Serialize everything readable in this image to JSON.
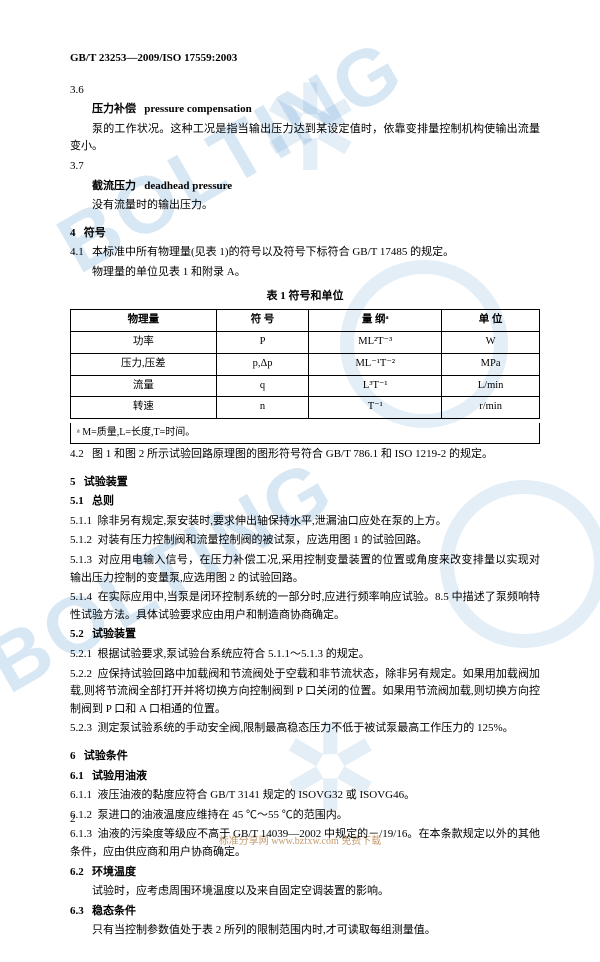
{
  "doc_header": "GB/T 23253—2009/ISO 17559:2003",
  "s3_6": {
    "num": "3.6",
    "term_cn": "压力补偿",
    "term_en": "pressure compensation",
    "text": "泵的工作状况。这种工况是指当输出压力达到某设定值时，依靠变排量控制机构使输出流量变小。"
  },
  "s3_7": {
    "num": "3.7",
    "term_cn": "截流压力",
    "term_en": "deadhead pressure",
    "text": "没有流量时的输出压力。"
  },
  "s4": {
    "num": "4",
    "title": "符号"
  },
  "s4_1": {
    "num": "4.1",
    "text": "本标准中所有物理量(见表 1)的符号以及符号下标符合 GB/T 17485 的规定。",
    "text2": "物理量的单位见表 1 和附录 A。"
  },
  "table1": {
    "title": "表 1  符号和单位",
    "headers": [
      "物理量",
      "符  号",
      "量  纲ᵃ",
      "单  位"
    ],
    "rows": [
      [
        "功率",
        "P",
        "ML²T⁻³",
        "W"
      ],
      [
        "压力,压差",
        "p,Δp",
        "ML⁻¹T⁻²",
        "MPa"
      ],
      [
        "流量",
        "q",
        "L³T⁻¹",
        "L/min"
      ],
      [
        "转速",
        "n",
        "T⁻¹",
        "r/min"
      ]
    ],
    "note": "ᵃ M=质量,L=长度,T=时间。"
  },
  "s4_2": {
    "num": "4.2",
    "text": "图 1 和图 2 所示试验回路原理图的图形符号符合 GB/T 786.1 和 ISO 1219-2 的规定。"
  },
  "s5": {
    "num": "5",
    "title": "试验装置"
  },
  "s5_1": {
    "num": "5.1",
    "title": "总则"
  },
  "s5_1_1": {
    "num": "5.1.1",
    "text": "除非另有规定,泵安装时,要求伸出轴保持水平,泄漏油口应处在泵的上方。"
  },
  "s5_1_2": {
    "num": "5.1.2",
    "text": "对装有压力控制阀和流量控制阀的被试泵，应选用图 1 的试验回路。"
  },
  "s5_1_3": {
    "num": "5.1.3",
    "text": "对应用电输入信号，在压力补偿工况,采用控制变量装置的位置或角度来改变排量以实现对输出压力控制的变量泵,应选用图 2 的试验回路。"
  },
  "s5_1_4": {
    "num": "5.1.4",
    "text": "在实际应用中,当泵是闭环控制系统的一部分时,应进行频率响应试验。8.5 中描述了泵频响特性试验方法。具体试验要求应由用户和制造商协商确定。"
  },
  "s5_2": {
    "num": "5.2",
    "title": "试验装置"
  },
  "s5_2_1": {
    "num": "5.2.1",
    "text": "根据试验要求,泵试验台系统应符合 5.1.1～5.1.3 的规定。"
  },
  "s5_2_2": {
    "num": "5.2.2",
    "text": "应保持试验回路中加载阀和节流阀处于空载和非节流状态，除非另有规定。如果用加载阀加载,则将节流阀全部打开并将切换方向控制阀到 P 口关闭的位置。如果用节流阀加载,则切换方向控制阀到 P 口和 A 口相通的位置。"
  },
  "s5_2_3": {
    "num": "5.2.3",
    "text": "测定泵试验系统的手动安全阀,限制最高稳态压力不低于被试泵最高工作压力的 125%。"
  },
  "s6": {
    "num": "6",
    "title": "试验条件"
  },
  "s6_1": {
    "num": "6.1",
    "title": "试验用油液"
  },
  "s6_1_1": {
    "num": "6.1.1",
    "text": "液压油液的黏度应符合 GB/T 3141 规定的 ISOVG32 或 ISOVG46。"
  },
  "s6_1_2": {
    "num": "6.1.2",
    "text": "泵进口的油液温度应维持在 45 ℃～55 ℃的范围内。"
  },
  "s6_1_3": {
    "num": "6.1.3",
    "text": "油液的污染度等级应不高于 GB/T 14039—2002 中规定的－/19/16。在本条款规定以外的其他条件，应由供应商和用户协商确定。"
  },
  "s6_2": {
    "num": "6.2",
    "title": "环境温度",
    "text": "试验时，应考虑周围环境温度以及来自固定空调装置的影响。"
  },
  "s6_3": {
    "num": "6.3",
    "title": "稳态条件",
    "text": "只有当控制参数值处于表 2 所列的限制范围内时,才可读取每组测量值。"
  },
  "page_number": "2",
  "footer": "标准分享网 www.bzfxw.com 免费下载",
  "watermark_text": "BOLTING"
}
